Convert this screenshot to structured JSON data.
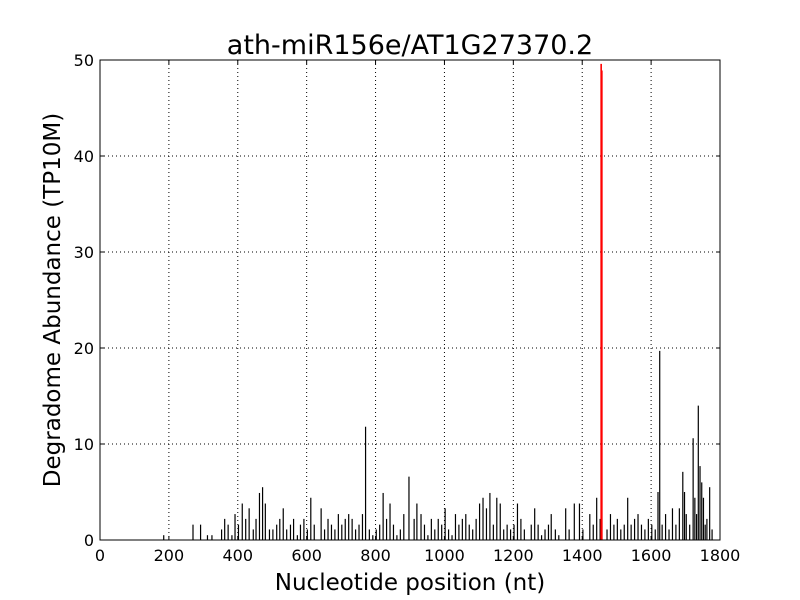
{
  "chart_data": {
    "type": "bar",
    "title": "ath-miR156e/AT1G27370.2",
    "xlabel": "Nucleotide position (nt)",
    "ylabel": "Degradome Abundance (TP10M)",
    "xlim": [
      0,
      1800
    ],
    "ylim": [
      0,
      50
    ],
    "xticks": [
      "0",
      "200",
      "400",
      "600",
      "800",
      "1000",
      "1200",
      "1400",
      "1600",
      "1800"
    ],
    "yticks": [
      "0",
      "10",
      "20",
      "30",
      "40",
      "50"
    ],
    "grid": true,
    "colors": {
      "bars": "#000000",
      "target": "#ff0000",
      "grid": "#000000"
    },
    "series": [
      {
        "x": [
          185,
          270,
          292,
          312,
          325,
          353,
          362,
          372,
          383,
          392,
          402,
          413,
          423,
          433,
          445,
          453,
          463,
          472,
          480,
          492,
          502,
          513,
          522,
          532,
          542,
          553,
          562,
          573,
          582,
          592,
          602,
          612,
          622,
          642,
          652,
          662,
          672,
          682,
          692,
          702,
          712,
          722,
          732,
          742,
          752,
          762,
          771,
          782,
          792,
          802,
          812,
          822,
          832,
          842,
          852,
          862,
          872,
          882,
          897,
          912,
          920,
          932,
          942,
          952,
          962,
          972,
          982,
          992,
          1002,
          1012,
          1022,
          1032,
          1042,
          1052,
          1062,
          1072,
          1082,
          1092,
          1102,
          1112,
          1122,
          1132,
          1142,
          1152,
          1162,
          1172,
          1182,
          1192,
          1202,
          1212,
          1222,
          1232,
          1252,
          1262,
          1272,
          1282,
          1292,
          1302,
          1310,
          1322,
          1332,
          1352,
          1362,
          1377,
          1392,
          1402,
          1422,
          1432,
          1442,
          1452,
          1472,
          1482,
          1492,
          1502,
          1512,
          1522,
          1532,
          1542,
          1552,
          1562,
          1572,
          1582,
          1592,
          1602,
          1612,
          1620,
          1625,
          1632,
          1642,
          1652,
          1662,
          1672,
          1682,
          1692,
          1697,
          1702,
          1712,
          1722,
          1727,
          1732,
          1737,
          1742,
          1747,
          1752,
          1757,
          1762,
          1770,
          1777
        ],
        "values": [
          0.5,
          1.6,
          1.6,
          0.5,
          0.5,
          1.1,
          2.2,
          1.6,
          0.5,
          2.7,
          1.6,
          3.8,
          2.2,
          3.3,
          1.1,
          2.2,
          4.9,
          5.5,
          3.8,
          1.1,
          1.1,
          1.6,
          2.2,
          3.3,
          1.1,
          1.6,
          2.2,
          0.5,
          1.6,
          2.2,
          1.1,
          4.4,
          1.6,
          3.3,
          1.1,
          2.2,
          1.6,
          1.1,
          2.7,
          1.6,
          2.2,
          2.7,
          2.2,
          1.1,
          1.6,
          2.7,
          11.8,
          1.1,
          0.5,
          1.1,
          1.6,
          4.9,
          2.2,
          3.8,
          1.6,
          0.5,
          1.1,
          2.7,
          6.6,
          2.2,
          3.8,
          2.7,
          1.6,
          0.5,
          2.2,
          1.1,
          2.2,
          1.6,
          3.3,
          1.1,
          0.5,
          2.7,
          1.6,
          2.2,
          2.7,
          1.6,
          1.1,
          2.2,
          3.8,
          4.4,
          3.3,
          4.9,
          1.6,
          4.4,
          3.8,
          1.1,
          1.6,
          1.1,
          1.6,
          3.8,
          2.2,
          1.1,
          1.6,
          3.3,
          1.6,
          0.5,
          1.1,
          1.6,
          2.7,
          1.1,
          0.5,
          3.3,
          1.1,
          3.8,
          3.8,
          1.1,
          2.7,
          1.6,
          4.4,
          2.2,
          1.1,
          2.7,
          1.6,
          2.2,
          1.1,
          1.6,
          4.4,
          1.6,
          2.2,
          2.7,
          1.6,
          1.1,
          2.2,
          1.6,
          1.1,
          5.0,
          19.7,
          1.6,
          2.7,
          1.1,
          3.3,
          1.6,
          3.3,
          7.1,
          5.0,
          2.7,
          1.6,
          10.6,
          4.4,
          2.7,
          14.0,
          7.7,
          6.0,
          4.4,
          1.6,
          2.2,
          5.5,
          1.1
        ]
      },
      {
        "x": [
          1455,
          1457
        ],
        "values": [
          49.6,
          48.9
        ]
      }
    ]
  }
}
